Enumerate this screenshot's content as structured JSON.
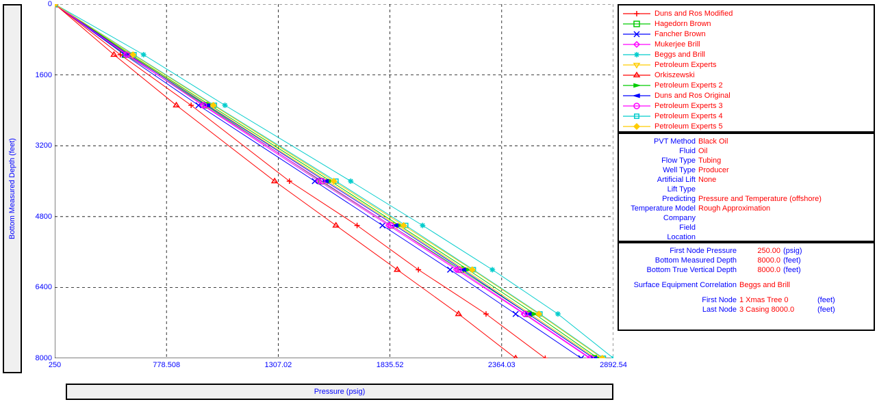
{
  "chart": {
    "type": "line",
    "x_label": "Pressure  (psig)",
    "y_label": "Bottom Measured Depth  (feet)",
    "xlim": [
      250,
      2892.54
    ],
    "ylim": [
      0,
      8000
    ],
    "x_ticks": [
      250,
      778.508,
      1307.02,
      1835.52,
      2364.03,
      2892.54
    ],
    "y_ticks": [
      0,
      1600,
      3200,
      4800,
      6400,
      8000
    ],
    "background_color": "#ffffff",
    "grid_color": "#000000",
    "grid_dash": "4 4",
    "tick_label_color": "#0000ff",
    "axis_label_color": "#0000ff",
    "series": [
      {
        "name": "Duns and Ros Modified",
        "color": "#ff0000",
        "marker": "plus",
        "depths": [
          0,
          1142.9,
          2285.7,
          4000,
          5000,
          6000,
          7000,
          8000
        ],
        "pressures": [
          250,
          560,
          895,
          1360,
          1680,
          1970,
          2290,
          2570
        ]
      },
      {
        "name": "Hagedorn Brown",
        "color": "#00cc00",
        "marker": "square",
        "depths": [
          0,
          1142.9,
          2285.7,
          4000,
          5000,
          6000,
          7000,
          8000
        ],
        "pressures": [
          250,
          585,
          964,
          1510,
          1840,
          2170,
          2490,
          2800
        ]
      },
      {
        "name": "Fancher Brown",
        "color": "#0000ff",
        "marker": "x",
        "depths": [
          0,
          1142.9,
          2285.7,
          4000,
          5000,
          6000,
          7000,
          8000
        ],
        "pressures": [
          250,
          580,
          930,
          1480,
          1800,
          2120,
          2430,
          2740
        ]
      },
      {
        "name": "Mukerjee Brill",
        "color": "#ff00ff",
        "marker": "diamond",
        "depths": [
          0,
          1142.9,
          2285.7,
          4000,
          5000,
          6000,
          7000,
          8000
        ],
        "pressures": [
          250,
          595,
          950,
          1500,
          1830,
          2150,
          2470,
          2780
        ]
      },
      {
        "name": "Beggs and Brill",
        "color": "#00cccc",
        "marker": "star",
        "depths": [
          0,
          1142.9,
          2285.7,
          4000,
          5000,
          6000,
          7000,
          8000
        ],
        "pressures": [
          250,
          670,
          1055,
          1650,
          1990,
          2320,
          2630,
          2892.54
        ]
      },
      {
        "name": "Petroleum Experts",
        "color": "#ffcc00",
        "marker": "tri-down",
        "depths": [
          0,
          1142.9,
          2285.7,
          4000,
          5000,
          6000,
          7000,
          8000
        ],
        "pressures": [
          250,
          605,
          975,
          1540,
          1870,
          2190,
          2500,
          2810
        ]
      },
      {
        "name": "Orkiszewski",
        "color": "#ff0000",
        "marker": "tri-up",
        "depths": [
          0,
          1142.9,
          2285.7,
          4000,
          5000,
          6000,
          7000,
          8000
        ],
        "pressures": [
          250,
          530,
          825,
          1290,
          1580,
          1870,
          2160,
          2430
        ]
      },
      {
        "name": "Petroleum Experts 2",
        "color": "#00cc00",
        "marker": "arrow-right",
        "depths": [
          0,
          1142.9,
          2285.7,
          4000,
          5000,
          6000,
          7000,
          8000
        ],
        "pressures": [
          250,
          610,
          985,
          1555,
          1880,
          2205,
          2520,
          2820
        ]
      },
      {
        "name": "Duns and Ros Original",
        "color": "#0000ff",
        "marker": "arrow-left",
        "depths": [
          0,
          1142.9,
          2285.7,
          4000,
          5000,
          6000,
          7000,
          8000
        ],
        "pressures": [
          250,
          600,
          970,
          1530,
          1860,
          2180,
          2490,
          2800
        ]
      },
      {
        "name": "Petroleum Experts 3",
        "color": "#ff00ff",
        "marker": "circle",
        "depths": [
          0,
          1142.9,
          2285.7,
          4000,
          5000,
          6000,
          7000,
          8000
        ],
        "pressures": [
          250,
          590,
          955,
          1515,
          1840,
          2160,
          2475,
          2785
        ]
      },
      {
        "name": "Petroleum Experts 4",
        "color": "#00cccc",
        "marker": "box",
        "depths": [
          0,
          1142.9,
          2285.7,
          4000,
          5000,
          6000,
          7000,
          8000
        ],
        "pressures": [
          250,
          625,
          1005,
          1580,
          1910,
          2230,
          2545,
          2845
        ]
      },
      {
        "name": "Petroleum Experts 5",
        "color": "#ffcc00",
        "marker": "diamond-f",
        "depths": [
          0,
          1142.9,
          2285.7,
          4000,
          5000,
          6000,
          7000,
          8000
        ],
        "pressures": [
          250,
          620,
          1000,
          1570,
          1900,
          2225,
          2540,
          2840
        ]
      }
    ]
  },
  "params": [
    {
      "key": "PVT Method",
      "val": "Black Oil"
    },
    {
      "key": "Fluid",
      "val": "Oil"
    },
    {
      "key": "Flow Type",
      "val": "Tubing"
    },
    {
      "key": "Well Type",
      "val": "Producer"
    },
    {
      "key": "Artificial Lift",
      "val": "None"
    },
    {
      "key": "Lift Type",
      "val": ""
    },
    {
      "key": "Predicting",
      "val": "Pressure and Temperature (offshore)"
    },
    {
      "key": "Temperature Model",
      "val": "Rough Approximation"
    },
    {
      "key": "Company",
      "val": ""
    },
    {
      "key": "Field",
      "val": ""
    },
    {
      "key": "Location",
      "val": ""
    }
  ],
  "depths": {
    "rows": [
      {
        "key": "First Node Pressure",
        "val": "250.00",
        "unit": "(psig)"
      },
      {
        "key": "Bottom Measured Depth",
        "val": "8000.0",
        "unit": "(feet)"
      },
      {
        "key": "Bottom True Vertical Depth",
        "val": "8000.0",
        "unit": "(feet)"
      }
    ],
    "correlation_key": "Surface Equipment Correlation",
    "correlation_val": "Beggs and Brill",
    "nodes": [
      {
        "key": "First Node",
        "val": "1 Xmas Tree 0",
        "unit": "(feet)"
      },
      {
        "key": "Last Node",
        "val": "3 Casing 8000.0",
        "unit": "(feet)"
      }
    ]
  }
}
